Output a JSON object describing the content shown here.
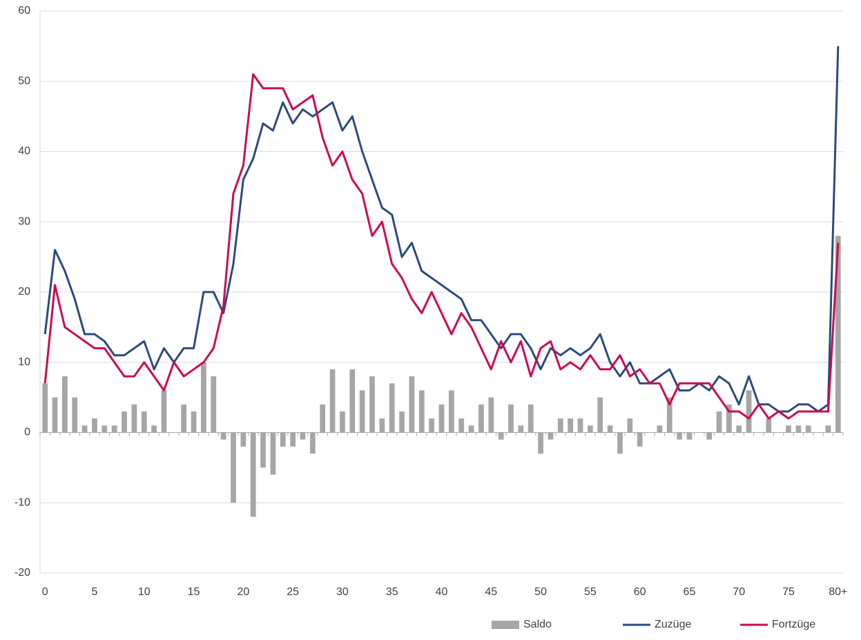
{
  "chart_data": {
    "type": "combo",
    "categories": [
      "0",
      null,
      null,
      null,
      null,
      "5",
      null,
      null,
      null,
      null,
      "10",
      null,
      null,
      null,
      null,
      "15",
      null,
      null,
      null,
      null,
      "20",
      null,
      null,
      null,
      null,
      "25",
      null,
      null,
      null,
      null,
      "30",
      null,
      null,
      null,
      null,
      "35",
      null,
      null,
      null,
      null,
      "40",
      null,
      null,
      null,
      null,
      "45",
      null,
      null,
      null,
      null,
      "50",
      null,
      null,
      null,
      null,
      "55",
      null,
      null,
      null,
      null,
      "60",
      null,
      null,
      null,
      null,
      "65",
      null,
      null,
      null,
      null,
      "70",
      null,
      null,
      null,
      null,
      "75",
      null,
      null,
      null,
      null,
      "80+"
    ],
    "series": [
      {
        "name": "Saldo",
        "type": "bar",
        "color": "#a6a6a6",
        "values": [
          7,
          5,
          8,
          5,
          1,
          2,
          1,
          1,
          3,
          4,
          3,
          1,
          6,
          0,
          4,
          3,
          10,
          8,
          -1,
          -10,
          -2,
          -12,
          -5,
          -6,
          -2,
          -2,
          -1,
          -3,
          4,
          9,
          3,
          9,
          6,
          8,
          2,
          7,
          3,
          8,
          6,
          2,
          4,
          6,
          2,
          1,
          4,
          5,
          -1,
          4,
          1,
          4,
          -3,
          -1,
          2,
          2,
          2,
          1,
          5,
          1,
          -3,
          2,
          -2,
          0,
          1,
          5,
          -1,
          -1,
          0,
          -1,
          3,
          4,
          1,
          6,
          0,
          2,
          0,
          1,
          1,
          1,
          0,
          1,
          28
        ]
      },
      {
        "name": "Zuzüge",
        "type": "line",
        "color": "#2c4a7c",
        "values": [
          14,
          26,
          23,
          19,
          14,
          14,
          13,
          11,
          11,
          12,
          13,
          9,
          12,
          10,
          12,
          12,
          20,
          20,
          17,
          24,
          36,
          39,
          44,
          43,
          47,
          44,
          46,
          45,
          46,
          47,
          43,
          45,
          40,
          36,
          32,
          31,
          25,
          27,
          23,
          22,
          21,
          20,
          19,
          16,
          16,
          14,
          12,
          14,
          14,
          12,
          9,
          12,
          11,
          12,
          11,
          12,
          14,
          10,
          8,
          10,
          7,
          7,
          8,
          9,
          6,
          6,
          7,
          6,
          8,
          7,
          4,
          8,
          4,
          4,
          3,
          3,
          4,
          4,
          3,
          4,
          55
        ]
      },
      {
        "name": "Fortzüge",
        "type": "line",
        "color": "#cc0a4f",
        "values": [
          7,
          21,
          15,
          14,
          13,
          12,
          12,
          10,
          8,
          8,
          10,
          8,
          6,
          10,
          8,
          9,
          10,
          12,
          18,
          34,
          38,
          51,
          49,
          49,
          49,
          46,
          47,
          48,
          42,
          38,
          40,
          36,
          34,
          28,
          30,
          24,
          22,
          19,
          17,
          20,
          17,
          14,
          17,
          15,
          12,
          9,
          13,
          10,
          13,
          8,
          12,
          13,
          9,
          10,
          9,
          11,
          9,
          9,
          11,
          8,
          9,
          7,
          7,
          4,
          7,
          7,
          7,
          7,
          5,
          3,
          3,
          2,
          4,
          2,
          3,
          2,
          3,
          3,
          3,
          3,
          27
        ]
      }
    ],
    "ylim": [
      -20,
      60
    ],
    "yticks": [
      -20,
      -10,
      0,
      10,
      20,
      30,
      40,
      50,
      60
    ],
    "grid": true,
    "legend": "bottom-right"
  }
}
